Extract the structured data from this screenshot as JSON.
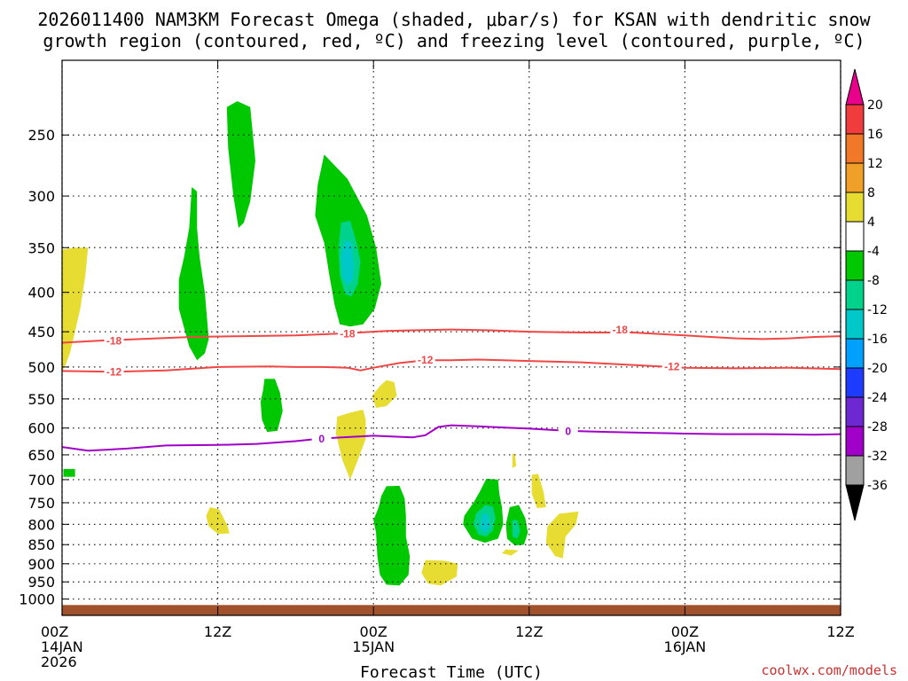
{
  "title_line1": "2026011400 NAM3KM Forecast Omega (shaded, μbar/s) for KSAN with dendritic snow",
  "title_line2": "growth region (contoured, red, ºC) and freezing level (contoured, purple, ºC)",
  "xlabel": "Forecast Time (UTC)",
  "watermark": "coolwx.com/models",
  "chart_data": {
    "type": "contour-time-height",
    "x_unit": "forecast hours from 2026-01-14 00Z",
    "xlim": [
      0,
      60
    ],
    "y_unit": "hPa",
    "ylim_top_bottom": [
      200,
      1050
    ],
    "x_ticks": [
      {
        "hour": 0,
        "lines": [
          "00Z",
          "14JAN",
          "2026"
        ]
      },
      {
        "hour": 12,
        "lines": [
          "12Z"
        ]
      },
      {
        "hour": 24,
        "lines": [
          "00Z",
          "15JAN"
        ]
      },
      {
        "hour": 36,
        "lines": [
          "12Z"
        ]
      },
      {
        "hour": 48,
        "lines": [
          "00Z",
          "16JAN"
        ]
      },
      {
        "hour": 60,
        "lines": [
          "12Z"
        ]
      }
    ],
    "y_ticks": [
      250,
      300,
      350,
      400,
      450,
      500,
      550,
      600,
      650,
      700,
      750,
      800,
      850,
      900,
      950,
      1000
    ],
    "grid": true,
    "colorbar": {
      "labels": [
        "20",
        "16",
        "12",
        "8",
        "4",
        "-4",
        "-8",
        "-12",
        "-16",
        "-20",
        "-24",
        "-28",
        "-32",
        "-36"
      ],
      "bins": [
        {
          "range": ">20",
          "color": "#e8008a"
        },
        {
          "range": "16 to 20",
          "color": "#f03c3c"
        },
        {
          "range": "12 to 16",
          "color": "#f07828"
        },
        {
          "range": "8 to 12",
          "color": "#f0a028"
        },
        {
          "range": "4 to 8",
          "color": "#e6dc32"
        },
        {
          "range": "-4 to 4",
          "color": "#ffffff"
        },
        {
          "range": "-8 to -4",
          "color": "#00c800"
        },
        {
          "range": "-12 to -8",
          "color": "#00d28c"
        },
        {
          "range": "-16 to -12",
          "color": "#00c8c8"
        },
        {
          "range": "-20 to -16",
          "color": "#00a0ff"
        },
        {
          "range": "-24 to -20",
          "color": "#1e3cff"
        },
        {
          "range": "-28 to -24",
          "color": "#6e28d2"
        },
        {
          "range": "-32 to -28",
          "color": "#a000c8"
        },
        {
          "range": "-36 to -32",
          "color": "#a0a0a0"
        },
        {
          "range": "<-36",
          "color": "#000000"
        }
      ]
    },
    "contours": [
      {
        "name": "-18",
        "color": "#f04646",
        "points": [
          [
            0,
            465
          ],
          [
            3,
            462
          ],
          [
            6,
            460
          ],
          [
            10,
            457
          ],
          [
            14,
            456
          ],
          [
            18,
            455
          ],
          [
            22,
            452
          ],
          [
            25,
            449
          ],
          [
            27,
            448
          ],
          [
            30,
            447
          ],
          [
            33,
            448
          ],
          [
            36,
            450
          ],
          [
            40,
            451
          ],
          [
            44,
            451
          ],
          [
            48,
            455
          ],
          [
            50,
            457
          ],
          [
            52,
            459
          ],
          [
            54,
            460
          ],
          [
            56,
            459
          ],
          [
            58,
            457
          ],
          [
            60,
            456
          ]
        ],
        "labels": [
          [
            4,
            462
          ],
          [
            22,
            452
          ],
          [
            43,
            447
          ]
        ]
      },
      {
        "name": "-12",
        "color": "#f04646",
        "points": [
          [
            0,
            506
          ],
          [
            4,
            507
          ],
          [
            8,
            505
          ],
          [
            12,
            500
          ],
          [
            16,
            499
          ],
          [
            18,
            500
          ],
          [
            20,
            500
          ],
          [
            22,
            501
          ],
          [
            23,
            505
          ],
          [
            24,
            501
          ],
          [
            26,
            494
          ],
          [
            28,
            490
          ],
          [
            30,
            490
          ],
          [
            32,
            489
          ],
          [
            34,
            490
          ],
          [
            36,
            491
          ],
          [
            40,
            493
          ],
          [
            44,
            497
          ],
          [
            48,
            501
          ],
          [
            52,
            502
          ],
          [
            56,
            501
          ],
          [
            60,
            503
          ]
        ],
        "labels": [
          [
            4,
            507
          ],
          [
            28,
            489
          ],
          [
            47,
            499
          ]
        ]
      },
      {
        "name": "0",
        "color": "#a000c8",
        "points": [
          [
            0,
            635
          ],
          [
            2,
            642
          ],
          [
            5,
            638
          ],
          [
            8,
            632
          ],
          [
            12,
            631
          ],
          [
            15,
            629
          ],
          [
            18,
            624
          ],
          [
            20,
            619
          ],
          [
            24,
            614
          ],
          [
            27,
            617
          ],
          [
            28,
            613
          ],
          [
            29,
            598
          ],
          [
            30,
            595
          ],
          [
            32,
            597
          ],
          [
            34,
            599
          ],
          [
            36,
            601
          ],
          [
            39,
            605
          ],
          [
            42,
            607
          ],
          [
            46,
            609
          ],
          [
            48,
            610
          ],
          [
            51,
            611
          ],
          [
            54,
            611
          ],
          [
            58,
            612
          ],
          [
            60,
            611
          ]
        ],
        "labels": [
          [
            20,
            619
          ],
          [
            39,
            605
          ]
        ]
      }
    ],
    "shaded_regions": [
      {
        "bin": "4 to 8",
        "points": [
          [
            0,
            352
          ],
          [
            1,
            350
          ],
          [
            2,
            350
          ],
          [
            1.8,
            380
          ],
          [
            1.4,
            420
          ],
          [
            1,
            450
          ],
          [
            0.6,
            480
          ],
          [
            0.2,
            500
          ],
          [
            0,
            506
          ]
        ]
      },
      {
        "bin": "-8 to -4",
        "points": [
          [
            12.7,
            230
          ],
          [
            13.5,
            226
          ],
          [
            14.5,
            230
          ],
          [
            14.9,
            270
          ],
          [
            14.5,
            305
          ],
          [
            14,
            325
          ],
          [
            13.6,
            330
          ],
          [
            13.2,
            300
          ],
          [
            12.8,
            260
          ]
        ]
      },
      {
        "bin": "-8 to -4",
        "points": [
          [
            10,
            292
          ],
          [
            10.4,
            296
          ],
          [
            10.4,
            330
          ],
          [
            10.6,
            360
          ],
          [
            11,
            400
          ],
          [
            11.3,
            460
          ],
          [
            11,
            480
          ],
          [
            10.4,
            490
          ],
          [
            9.8,
            470
          ],
          [
            9,
            420
          ],
          [
            9,
            385
          ],
          [
            9.4,
            360
          ],
          [
            9.8,
            330
          ]
        ]
      },
      {
        "bin": "-8 to -4",
        "points": [
          [
            20.2,
            265
          ],
          [
            22,
            285
          ],
          [
            23.5,
            318
          ],
          [
            24.2,
            350
          ],
          [
            24.6,
            390
          ],
          [
            24.1,
            420
          ],
          [
            23.2,
            440
          ],
          [
            22.2,
            443
          ],
          [
            21.4,
            440
          ],
          [
            21,
            415
          ],
          [
            20.6,
            380
          ],
          [
            20.2,
            345
          ],
          [
            19.5,
            318
          ],
          [
            19.7,
            290
          ]
        ]
      },
      {
        "bin": "-12 to -8",
        "points": [
          [
            21.5,
            325
          ],
          [
            22.2,
            323
          ],
          [
            22.7,
            345
          ],
          [
            23,
            365
          ],
          [
            22.8,
            390
          ],
          [
            22.3,
            405
          ],
          [
            21.8,
            402
          ],
          [
            21.4,
            380
          ],
          [
            21.3,
            350
          ]
        ]
      },
      {
        "bin": "-16 to -12",
        "points": [
          [
            21.8,
            342
          ],
          [
            22.3,
            345
          ],
          [
            22.5,
            370
          ],
          [
            22.4,
            385
          ],
          [
            22,
            392
          ],
          [
            21.6,
            382
          ],
          [
            21.5,
            360
          ]
        ]
      },
      {
        "bin": "-8 to -4",
        "points": [
          [
            15.6,
            518
          ],
          [
            16.4,
            518
          ],
          [
            16.8,
            540
          ],
          [
            17,
            570
          ],
          [
            16.6,
            605
          ],
          [
            15.8,
            607
          ],
          [
            15.4,
            585
          ],
          [
            15.3,
            555
          ],
          [
            15.5,
            535
          ]
        ]
      },
      {
        "bin": "4 to 8",
        "points": [
          [
            24.5,
            529
          ],
          [
            25,
            520
          ],
          [
            25.6,
            523
          ],
          [
            25.8,
            545
          ],
          [
            25,
            562
          ],
          [
            24.2,
            565
          ],
          [
            23.9,
            545
          ]
        ]
      },
      {
        "bin": "4 to 8",
        "points": [
          [
            22.2,
            573
          ],
          [
            23.2,
            568
          ],
          [
            23.4,
            585
          ],
          [
            23.4,
            620
          ],
          [
            22.8,
            660
          ],
          [
            22.2,
            700
          ],
          [
            21.6,
            660
          ],
          [
            21.1,
            610
          ],
          [
            21.2,
            580
          ]
        ]
      },
      {
        "bin": "-8 to -4",
        "points": [
          [
            0.1,
            678
          ],
          [
            1,
            678
          ],
          [
            1,
            694
          ],
          [
            0.1,
            694
          ]
        ]
      },
      {
        "bin": "-8 to -4",
        "points": [
          [
            25,
            714
          ],
          [
            26,
            713
          ],
          [
            26.4,
            740
          ],
          [
            26.5,
            780
          ],
          [
            26.5,
            830
          ],
          [
            26.8,
            880
          ],
          [
            26.7,
            930
          ],
          [
            26,
            960
          ],
          [
            25,
            958
          ],
          [
            24.5,
            930
          ],
          [
            24.3,
            880
          ],
          [
            24.2,
            820
          ],
          [
            24,
            790
          ],
          [
            24.4,
            760
          ],
          [
            24.6,
            735
          ]
        ]
      },
      {
        "bin": "4 to 8",
        "points": [
          [
            28,
            890
          ],
          [
            29.5,
            892
          ],
          [
            30.5,
            900
          ],
          [
            30.4,
            935
          ],
          [
            29.2,
            960
          ],
          [
            28.2,
            955
          ],
          [
            27.7,
            925
          ]
        ]
      },
      {
        "bin": "-8 to -4",
        "points": [
          [
            32.7,
            698
          ],
          [
            33.6,
            700
          ],
          [
            33.7,
            730
          ],
          [
            33.9,
            760
          ],
          [
            34,
            800
          ],
          [
            33.6,
            835
          ],
          [
            32.6,
            845
          ],
          [
            31.6,
            835
          ],
          [
            30.9,
            800
          ],
          [
            31,
            780
          ],
          [
            31.7,
            750
          ],
          [
            32.2,
            725
          ]
        ]
      },
      {
        "bin": "-12 to -8",
        "points": [
          [
            32.6,
            755
          ],
          [
            33.2,
            758
          ],
          [
            33.4,
            785
          ],
          [
            33.2,
            815
          ],
          [
            32.7,
            830
          ],
          [
            32.1,
            825
          ],
          [
            31.7,
            800
          ],
          [
            31.9,
            775
          ]
        ]
      },
      {
        "bin": "-16 to -12",
        "points": [
          [
            32.4,
            775
          ],
          [
            32.8,
            775
          ],
          [
            33,
            805
          ],
          [
            32.6,
            820
          ],
          [
            32.2,
            810
          ]
        ]
      },
      {
        "bin": "-8 to -4",
        "points": [
          [
            34.5,
            760
          ],
          [
            35.2,
            755
          ],
          [
            35.7,
            785
          ],
          [
            35.9,
            820
          ],
          [
            35.6,
            850
          ],
          [
            34.9,
            852
          ],
          [
            34.3,
            835
          ],
          [
            34.2,
            800
          ]
        ]
      },
      {
        "bin": "-12 to -8",
        "points": [
          [
            34.7,
            790
          ],
          [
            35.1,
            790
          ],
          [
            35.3,
            815
          ],
          [
            35.1,
            835
          ],
          [
            34.7,
            830
          ]
        ]
      },
      {
        "bin": "4 to 8",
        "points": [
          [
            34.2,
            862
          ],
          [
            35.2,
            865
          ],
          [
            34.6,
            878
          ],
          [
            33.9,
            872
          ]
        ]
      },
      {
        "bin": "4 to 8",
        "points": [
          [
            34.7,
            648
          ],
          [
            34.9,
            648
          ],
          [
            35,
            672
          ],
          [
            34.7,
            676
          ]
        ]
      },
      {
        "bin": "4 to 8",
        "points": [
          [
            36.2,
            690
          ],
          [
            36.7,
            688
          ],
          [
            37.1,
            725
          ],
          [
            37.3,
            760
          ],
          [
            36.6,
            762
          ],
          [
            36.2,
            730
          ]
        ]
      },
      {
        "bin": "4 to 8",
        "points": [
          [
            38.3,
            775
          ],
          [
            39.8,
            770
          ],
          [
            39.6,
            800
          ],
          [
            38.8,
            830
          ],
          [
            38.6,
            885
          ],
          [
            38,
            880
          ],
          [
            37.3,
            845
          ],
          [
            37.4,
            805
          ]
        ]
      },
      {
        "bin": "4 to 8",
        "points": [
          [
            11.4,
            760
          ],
          [
            12.1,
            765
          ],
          [
            12.7,
            800
          ],
          [
            12.9,
            822
          ],
          [
            12,
            823
          ],
          [
            11.3,
            805
          ],
          [
            11.1,
            780
          ]
        ]
      }
    ],
    "surface": {
      "color": "#a0522d",
      "from_hPa": 1018
    }
  }
}
